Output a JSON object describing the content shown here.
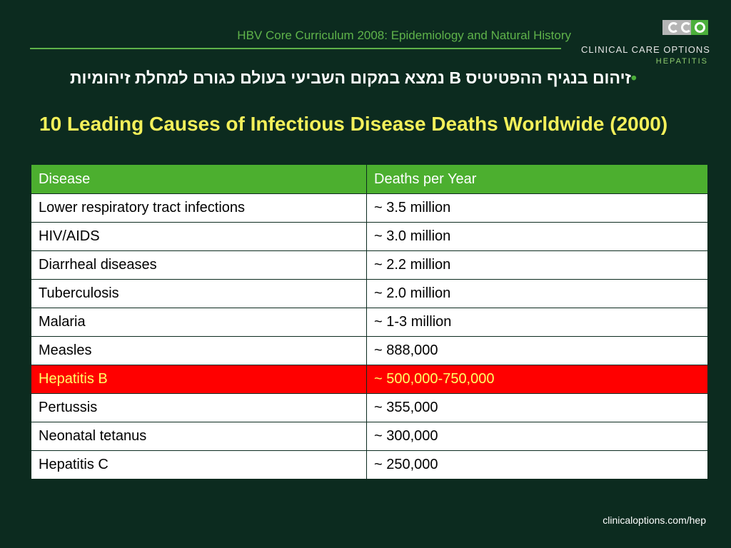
{
  "header": {
    "title": "HBV Core Curriculum 2008: Epidemiology and Natural History"
  },
  "logo": {
    "name": "CLINICAL CARE OPTIONS",
    "subtitle": "HEPATITIS"
  },
  "bullet": {
    "symbol": "•",
    "text": "זיהום בנגיף ההפטיטיס B נמצא במקום השביעי בעולם כגורם למחלת זיהומיות"
  },
  "title": "10 Leading Causes of Infectious Disease Deaths Worldwide (2000)",
  "table": {
    "headers": [
      "Disease",
      "Deaths per Year"
    ],
    "rows": [
      {
        "disease": "Lower respiratory tract infections",
        "deaths": "~ 3.5 million"
      },
      {
        "disease": "HIV/AIDS",
        "deaths": "~ 3.0 million"
      },
      {
        "disease": "Diarrheal diseases",
        "deaths": "~ 2.2 million"
      },
      {
        "disease": "Tuberculosis",
        "deaths": "~ 2.0 million"
      },
      {
        "disease": "Malaria",
        "deaths": "~ 1-3 million"
      },
      {
        "disease": "Measles",
        "deaths": "~ 888,000"
      },
      {
        "disease": "Hepatitis B",
        "deaths": "~ 500,000-750,000"
      },
      {
        "disease": "Pertussis",
        "deaths": "~ 355,000"
      },
      {
        "disease": "Neonatal tetanus",
        "deaths": "~ 300,000"
      },
      {
        "disease": "Hepatitis C",
        "deaths": "~ 250,000"
      }
    ],
    "highlighted_row": "Hepatitis B"
  },
  "footer": {
    "url": "clinicaloptions.com/hep"
  },
  "colors": {
    "background": "#0c2b1f",
    "accent_green": "#4caf2f",
    "title_yellow": "#f3f05a",
    "highlight_red": "#ff0000",
    "highlight_text": "#ffff66"
  }
}
